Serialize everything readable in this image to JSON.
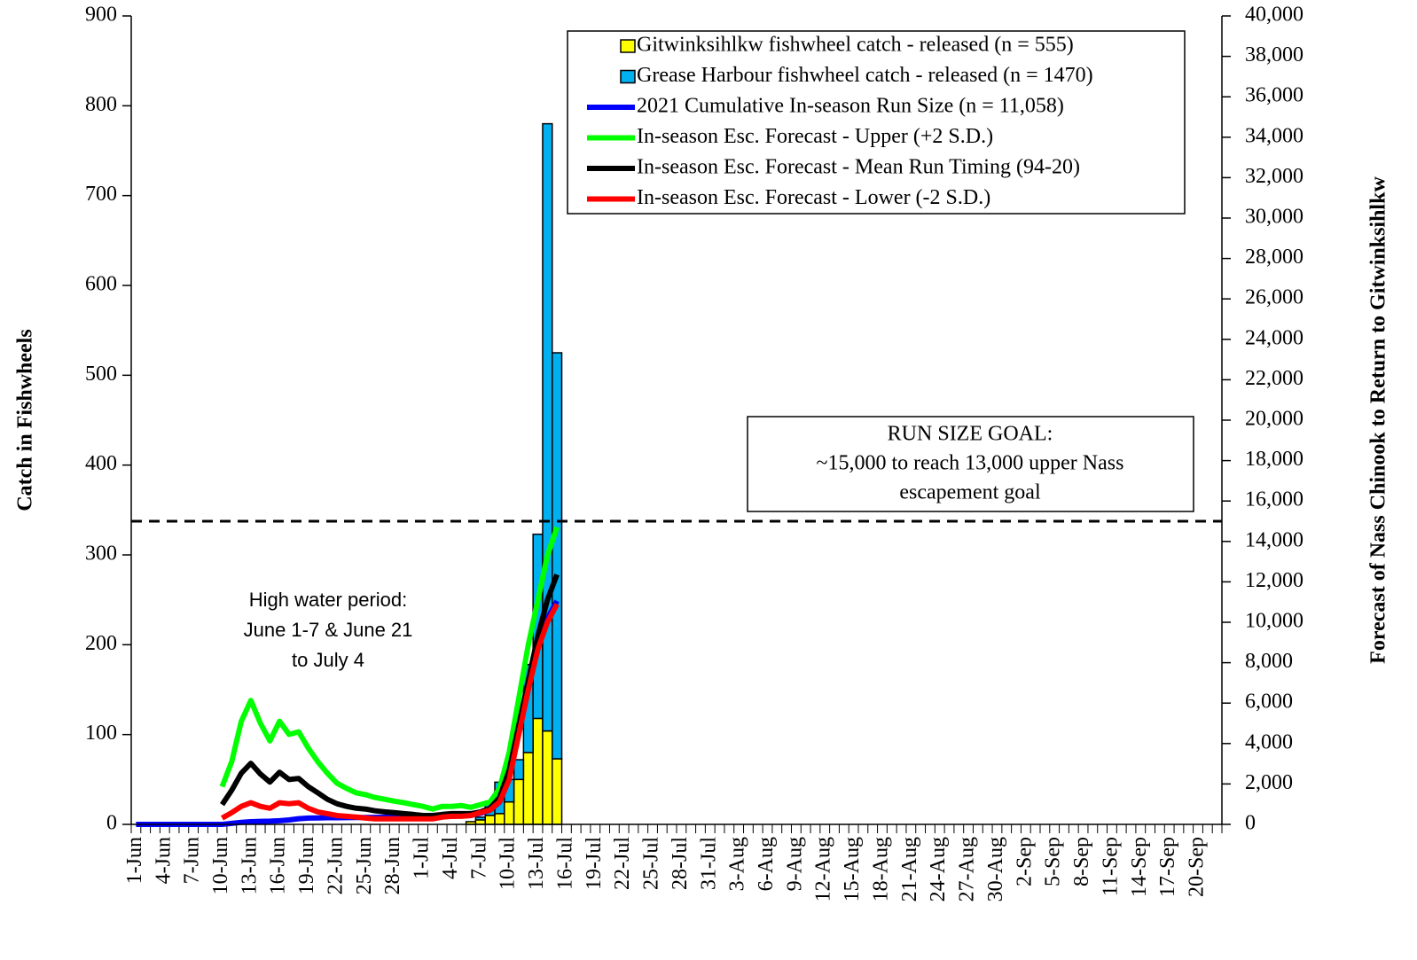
{
  "chart_data": {
    "type": "bar",
    "stacked": true,
    "y_label": "Catch in Fishwheels",
    "y2_label": "Forecast of Nass Chinook to Return to Gitwinksihlkw",
    "annotations": [
      "High water period:",
      "June 1-7 & June 21",
      "to July 4"
    ],
    "goal_box": [
      "RUN SIZE GOAL:",
      "~15,000 to reach 13,000 upper Nass",
      "escapement goal"
    ],
    "goal_line": 15000,
    "categories": [
      "1-Jun",
      null,
      null,
      "4-Jun",
      null,
      null,
      "7-Jun",
      null,
      null,
      "10-Jun",
      null,
      null,
      "13-Jun",
      null,
      null,
      "16-Jun",
      null,
      null,
      "19-Jun",
      null,
      null,
      "22-Jun",
      null,
      null,
      "25-Jun",
      null,
      null,
      "28-Jun",
      null,
      null,
      "1-Jul",
      null,
      null,
      "4-Jul",
      null,
      null,
      "7-Jul",
      null,
      null,
      "10-Jul",
      null,
      null,
      "13-Jul",
      null,
      null,
      "16-Jul",
      null,
      null,
      "19-Jul",
      null,
      null,
      "22-Jul",
      null,
      null,
      "25-Jul",
      null,
      null,
      "28-Jul",
      null,
      null,
      "31-Jul",
      null,
      null,
      "3-Aug",
      null,
      null,
      "6-Aug",
      null,
      null,
      "9-Aug",
      null,
      null,
      "12-Aug",
      null,
      null,
      "15-Aug",
      null,
      null,
      "18-Aug",
      null,
      null,
      "21-Aug",
      null,
      null,
      "24-Aug",
      null,
      null,
      "27-Aug",
      null,
      null,
      "30-Aug",
      null,
      null,
      "2-Sep",
      null,
      null,
      "5-Sep",
      null,
      null,
      "8-Sep",
      null,
      null,
      "11-Sep",
      null,
      null,
      "14-Sep",
      null,
      null,
      "17-Sep",
      null,
      null,
      "20-Sep",
      null,
      null
    ],
    "ylim": [
      0,
      900
    ],
    "yticks": [
      0,
      100,
      200,
      300,
      400,
      500,
      600,
      700,
      800,
      900
    ],
    "y2lim": [
      0,
      40000
    ],
    "y2ticks": [
      0,
      {
        "value": 2000,
        "label": "2,000"
      },
      {
        "value": 4000,
        "label": "4,000"
      },
      {
        "value": 6000,
        "label": "6,000"
      },
      {
        "value": 8000,
        "label": "8,000"
      },
      {
        "value": 10000,
        "label": "10,000"
      },
      {
        "value": 12000,
        "label": "12,000"
      },
      {
        "value": 14000,
        "label": "14,000"
      },
      {
        "value": 16000,
        "label": "16,000"
      },
      {
        "value": 18000,
        "label": "18,000"
      },
      {
        "value": 20000,
        "label": "20,000"
      },
      {
        "value": 22000,
        "label": "22,000"
      },
      {
        "value": 24000,
        "label": "24,000"
      },
      {
        "value": 26000,
        "label": "26,000"
      },
      {
        "value": 28000,
        "label": "28,000"
      },
      {
        "value": 30000,
        "label": "30,000"
      },
      {
        "value": 32000,
        "label": "32,000"
      },
      {
        "value": 34000,
        "label": "34,000"
      },
      {
        "value": 36000,
        "label": "36,000"
      },
      {
        "value": 38000,
        "label": "38,000"
      },
      {
        "value": 40000,
        "label": "40,000"
      }
    ],
    "series": [
      {
        "name": "Gitwinksihlkw fishwheel catch - released (n = 555)",
        "type": "bar",
        "color": "#ffff00",
        "values": [
          0,
          0,
          0,
          0,
          0,
          0,
          0,
          0,
          0,
          0,
          0,
          0,
          0,
          0,
          0,
          0,
          0,
          0,
          0,
          0,
          0,
          0,
          0,
          0,
          0,
          0,
          0,
          0,
          0,
          0,
          0,
          0,
          0,
          0,
          0,
          3,
          5,
          10,
          12,
          25,
          50,
          80,
          118,
          104,
          73,
          null,
          null,
          null,
          null,
          null,
          null,
          null,
          null,
          null,
          null,
          null,
          null,
          null,
          null,
          null,
          null,
          null,
          null,
          null,
          null,
          null,
          null,
          null,
          null,
          null,
          null,
          null,
          null,
          null,
          null,
          null,
          null,
          null,
          null,
          null,
          null,
          null,
          null,
          null,
          null,
          null,
          null,
          null,
          null,
          null,
          null,
          null,
          null,
          null,
          null,
          null,
          null,
          null,
          null,
          null,
          null,
          null,
          null,
          null,
          null,
          null,
          null,
          null,
          null,
          null,
          null,
          null,
          null,
          null
        ]
      },
      {
        "name": "Grease Harbour fishwheel catch - released (n = 1470)",
        "type": "bar",
        "color": "#00b0f0",
        "values": [
          0,
          0,
          0,
          0,
          0,
          0,
          0,
          0,
          0,
          0,
          0,
          0,
          0,
          0,
          0,
          0,
          0,
          0,
          0,
          0,
          0,
          0,
          0,
          0,
          0,
          0,
          0,
          0,
          0,
          0,
          0,
          0,
          0,
          0,
          0,
          0,
          3,
          15,
          35,
          25,
          22,
          98,
          205,
          676,
          452,
          null,
          null,
          null,
          null,
          null,
          null,
          null,
          null,
          null,
          null,
          null,
          null,
          null,
          null,
          null,
          null,
          null,
          null,
          null,
          null,
          null,
          null,
          null,
          null,
          null,
          null,
          null,
          null,
          null,
          null,
          null,
          null,
          null,
          null,
          null,
          null,
          null,
          null,
          null,
          null,
          null,
          null,
          null,
          null,
          null,
          null,
          null,
          null,
          null,
          null,
          null,
          null,
          null,
          null,
          null,
          null,
          null,
          null,
          null,
          null,
          null,
          null,
          null,
          null,
          null,
          null,
          null,
          null,
          null
        ]
      },
      {
        "name": "2021 Cumulative In-season Run Size (n = 11,058)",
        "type": "line",
        "axis": "y2",
        "color": "#0000ff",
        "values": [
          0,
          0,
          0,
          0,
          0,
          0,
          0,
          0,
          0,
          0,
          50,
          100,
          130,
          150,
          160,
          180,
          220,
          280,
          310,
          320,
          330,
          330,
          335,
          340,
          340,
          345,
          350,
          350,
          355,
          360,
          370,
          380,
          390,
          400,
          420,
          440,
          550,
          700,
          1100,
          2300,
          4500,
          6700,
          8800,
          10200,
          11058,
          null,
          null,
          null,
          null,
          null,
          null,
          null,
          null,
          null,
          null,
          null,
          null,
          null,
          null,
          null,
          null,
          null,
          null,
          null,
          null,
          null,
          null,
          null,
          null,
          null,
          null,
          null,
          null,
          null,
          null,
          null,
          null,
          null,
          null,
          null,
          null,
          null,
          null,
          null,
          null,
          null,
          null,
          null,
          null,
          null,
          null,
          null,
          null,
          null,
          null,
          null,
          null,
          null,
          null,
          null,
          null,
          null,
          null,
          null,
          null,
          null,
          null,
          null,
          null,
          null,
          null,
          null,
          null,
          null
        ]
      },
      {
        "name": "In-season Esc. Forecast - Upper (+2 S.D.)",
        "type": "line",
        "axis": "y2",
        "color": "#00ff00",
        "values": [
          null,
          null,
          null,
          null,
          null,
          null,
          null,
          null,
          null,
          1870,
          3100,
          5100,
          6130,
          5000,
          4130,
          5100,
          4450,
          4580,
          3780,
          3100,
          2530,
          2040,
          1780,
          1560,
          1470,
          1330,
          1240,
          1150,
          1070,
          980,
          890,
          760,
          890,
          890,
          930,
          840,
          980,
          1110,
          1780,
          3560,
          6220,
          8890,
          11100,
          13300,
          14700,
          null,
          null,
          null,
          null,
          null,
          null,
          null,
          null,
          null,
          null,
          null,
          null,
          null,
          null,
          null,
          null,
          null,
          null,
          null,
          null,
          null,
          null,
          null,
          null,
          null,
          null,
          null,
          null,
          null,
          null,
          null,
          null,
          null,
          null,
          null,
          null,
          null,
          null,
          null,
          null,
          null,
          null,
          null,
          null,
          null,
          null,
          null,
          null,
          null,
          null,
          null,
          null,
          null,
          null,
          null,
          null,
          null,
          null,
          null,
          null,
          null,
          null,
          null,
          null,
          null,
          null,
          null,
          null,
          null
        ]
      },
      {
        "name": "In-season Esc. Forecast - Mean Run Timing (94-20)",
        "type": "line",
        "axis": "y2",
        "color": "#000000",
        "values": [
          null,
          null,
          null,
          null,
          null,
          null,
          null,
          null,
          null,
          980,
          1690,
          2530,
          3020,
          2490,
          2090,
          2580,
          2220,
          2270,
          1870,
          1560,
          1240,
          1020,
          890,
          800,
          760,
          670,
          620,
          580,
          530,
          490,
          440,
          440,
          490,
          530,
          530,
          530,
          620,
          800,
          1330,
          2670,
          4890,
          7110,
          9330,
          11100,
          12360,
          null,
          null,
          null,
          null,
          null,
          null,
          null,
          null,
          null,
          null,
          null,
          null,
          null,
          null,
          null,
          null,
          null,
          null,
          null,
          null,
          null,
          null,
          null,
          null,
          null,
          null,
          null,
          null,
          null,
          null,
          null,
          null,
          null,
          null,
          null,
          null,
          null,
          null,
          null,
          null,
          null,
          null,
          null,
          null,
          null,
          null,
          null,
          null,
          null,
          null,
          null,
          null,
          null,
          null,
          null,
          null,
          null,
          null,
          null,
          null,
          null,
          null,
          null,
          null,
          null,
          null,
          null,
          null,
          null
        ]
      },
      {
        "name": "In-season Esc. Forecast - Lower (-2 S.D.)",
        "type": "line",
        "axis": "y2",
        "color": "#ff0000",
        "values": [
          null,
          null,
          null,
          null,
          null,
          null,
          null,
          null,
          null,
          310,
          580,
          890,
          1070,
          890,
          800,
          1070,
          1020,
          1070,
          800,
          620,
          530,
          440,
          400,
          360,
          310,
          270,
          270,
          270,
          270,
          270,
          270,
          270,
          360,
          400,
          400,
          440,
          580,
          710,
          1110,
          2220,
          4440,
          6670,
          8670,
          10000,
          10890,
          null,
          null,
          null,
          null,
          null,
          null,
          null,
          null,
          null,
          null,
          null,
          null,
          null,
          null,
          null,
          null,
          null,
          null,
          null,
          null,
          null,
          null,
          null,
          null,
          null,
          null,
          null,
          null,
          null,
          null,
          null,
          null,
          null,
          null,
          null,
          null,
          null,
          null,
          null,
          null,
          null,
          null,
          null,
          null,
          null,
          null,
          null,
          null,
          null,
          null,
          null,
          null,
          null,
          null,
          null,
          null,
          null,
          null,
          null,
          null,
          null,
          null,
          null,
          null,
          null,
          null,
          null,
          null,
          null
        ]
      }
    ]
  }
}
